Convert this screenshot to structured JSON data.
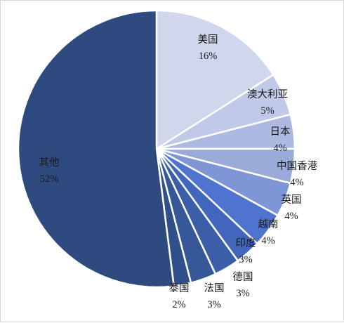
{
  "chart_data": {
    "type": "pie",
    "categories": [
      "美国",
      "澳大利亚",
      "日本",
      "中国香港",
      "英国",
      "越南",
      "印度",
      "德国",
      "法国",
      "泰国",
      "其他"
    ],
    "values": [
      16,
      5,
      4,
      4,
      4,
      4,
      3,
      3,
      3,
      2,
      52
    ],
    "value_labels": [
      "16%",
      "5%",
      "4%",
      "4%",
      "4%",
      "4%",
      "3%",
      "3%",
      "3%",
      "2%",
      "52%"
    ],
    "colors": [
      "#d0d6ec",
      "#c0c9e7",
      "#adb9e0",
      "#9aaad9",
      "#7f96d6",
      "#4e74d0",
      "#4166bb",
      "#3a5ea8",
      "#365798",
      "#31508b",
      "#2e4a7f"
    ],
    "start_angle": "12 o'clock",
    "direction": "clockwise",
    "legend": "none"
  }
}
